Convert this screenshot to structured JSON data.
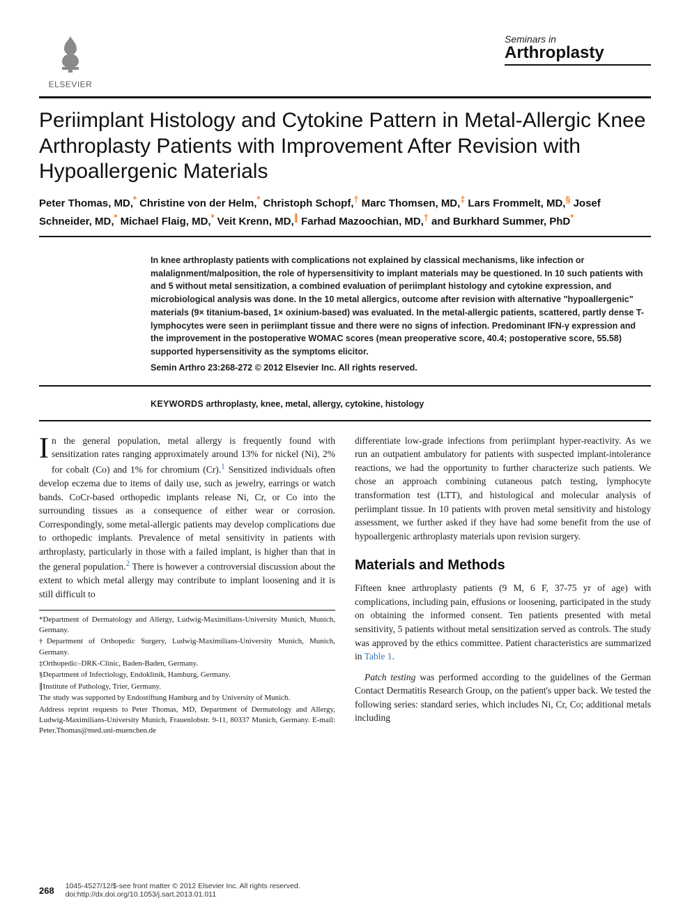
{
  "header": {
    "publisher": "ELSEVIER",
    "journal_top": "Seminars in",
    "journal_main": "Arthroplasty"
  },
  "article": {
    "title": "Periimplant Histology and Cytokine Pattern in Metal-Allergic Knee Arthroplasty Patients with Improvement After Revision with Hypoallergenic Materials",
    "authors_html": "Peter Thomas, MD,<sup>*</sup> Christine von der Helm,<sup>*</sup> Christoph Schopf,<sup>†</sup> Marc Thomsen, MD,<sup>‡</sup> Lars Frommelt, MD,<sup>§</sup> Josef Schneider, MD,<sup>*</sup> Michael Flaig, MD,<sup>*</sup> Veit Krenn, MD,<sup>∥</sup> Farhad Mazoochian, MD,<sup>†</sup> and Burkhard Summer, PhD<sup>*</sup>",
    "abstract": "In knee arthroplasty patients with complications not explained by classical mechanisms, like infection or malalignment/malposition, the role of hypersensitivity to implant materials may be questioned. In 10 such patients with and 5 without metal sensitization, a combined evaluation of periimplant histology and cytokine expression, and microbiological analysis was done. In the 10 metal allergics, outcome after revision with alternative \"hypoallergenic\" materials (9× titanium-based, 1× oxinium-based) was evaluated. In the metal-allergic patients, scattered, partly dense T-lymphocytes were seen in periimplant tissue and there were no signs of infection. Predominant IFN-γ expression and the improvement in the postoperative WOMAC scores (mean preoperative score, 40.4; postoperative score, 55.58) supported hypersensitivity as the symptoms elicitor.",
    "citation": "Semin Arthro 23:268-272 © 2012 Elsevier Inc. All rights reserved.",
    "keywords_label": "KEYWORDS",
    "keywords": "arthroplasty, knee, metal, allergy, cytokine, histology"
  },
  "body": {
    "col1_p1": "n the general population, metal allergy is frequently found with sensitization rates ranging approximately around 13% for nickel (Ni), 2% for cobalt (Co) and 1% for chromium (Cr).",
    "col1_p1_cont": " Sensitized individuals often develop eczema due to items of daily use, such as jewelry, earrings or watch bands. CoCr-based orthopedic implants release Ni, Cr, or Co into the surrounding tissues as a consequence of either wear or corrosion. Correspondingly, some metal-allergic patients may develop complications due to orthopedic implants. Prevalence of metal sensitivity in patients with arthroplasty, particularly in those with a failed implant, is higher than that in the general population.",
    "col1_p1_tail": " There is however a controversial discussion about the extent to which metal allergy may contribute to implant loosening and it is still difficult to",
    "col2_p1": "differentiate low-grade infections from periimplant hyper-reactivity. As we run an outpatient ambulatory for patients with suspected implant-intolerance reactions, we had the opportunity to further characterize such patients. We chose an approach combining cutaneous patch testing, lymphocyte transformation test (LTT), and histological and molecular analysis of periimplant tissue. In 10 patients with proven metal sensitivity and histology assessment, we further asked if they have had some benefit from the use of hypoallergenic arthroplasty materials upon revision surgery.",
    "section_heading": "Materials and Methods",
    "col2_p2": "Fifteen knee arthroplasty patients (9 M, 6 F, 37-75 yr of age) with complications, including pain, effusions or loosening, participated in the study on obtaining the informed consent. Ten patients presented with metal sensitivity, 5 patients without metal sensitization served as controls. The study was approved by the ethics committee. Patient characteristics are summarized in ",
    "col2_p2_link": "Table 1",
    "col2_p2_tail": ".",
    "col2_p3_lead": "Patch testing",
    "col2_p3": " was performed according to the guidelines of the German Contact Dermatitis Research Group, on the patient's upper back. We tested the following series: standard series, which includes Ni, Cr, Co; additional metals including"
  },
  "affiliations": {
    "a1": "*Department of Dermatology and Allergy, Ludwig-Maximilians-University Munich, Munich, Germany.",
    "a2": "†Department of Orthopedic Surgery, Ludwig-Maximilians-University Munich, Munich, Germany.",
    "a3": "‡Orthopedic–DRK-Clinic, Baden-Baden, Germany.",
    "a4": "§Department of Infectiology, Endoklinik, Hamburg, Germany.",
    "a5": "∥Institute of Pathology, Trier, Germany.",
    "support": "The study was supported by Endostiftung Hamburg and by University of Munich.",
    "reprint": "Address reprint requests to Peter Thomas, MD, Department of Dermatology and Allergy, Ludwig-Maximilians-University Munich, Frauenlobstr. 9-11, 80337 Munich, Germany. E-mail: Peter.Thomas@med.uni-muenchen.de"
  },
  "footer": {
    "page": "268",
    "line1": "1045-4527/12/$-see front matter © 2012 Elsevier Inc. All rights reserved.",
    "line2": "doi:http://dx.doi.org/10.1053/j.sart.2013.01.011"
  },
  "colors": {
    "accent": "#f47b2a",
    "link": "#3a7ab5",
    "text": "#1a1a1a",
    "rule": "#111111",
    "bg": "#ffffff"
  },
  "typography": {
    "title_fontsize": 30,
    "authors_fontsize": 15,
    "abstract_fontsize": 12.5,
    "body_fontsize": 13.5,
    "heading_fontsize": 20,
    "affil_fontsize": 11,
    "footer_fontsize": 10.5
  }
}
